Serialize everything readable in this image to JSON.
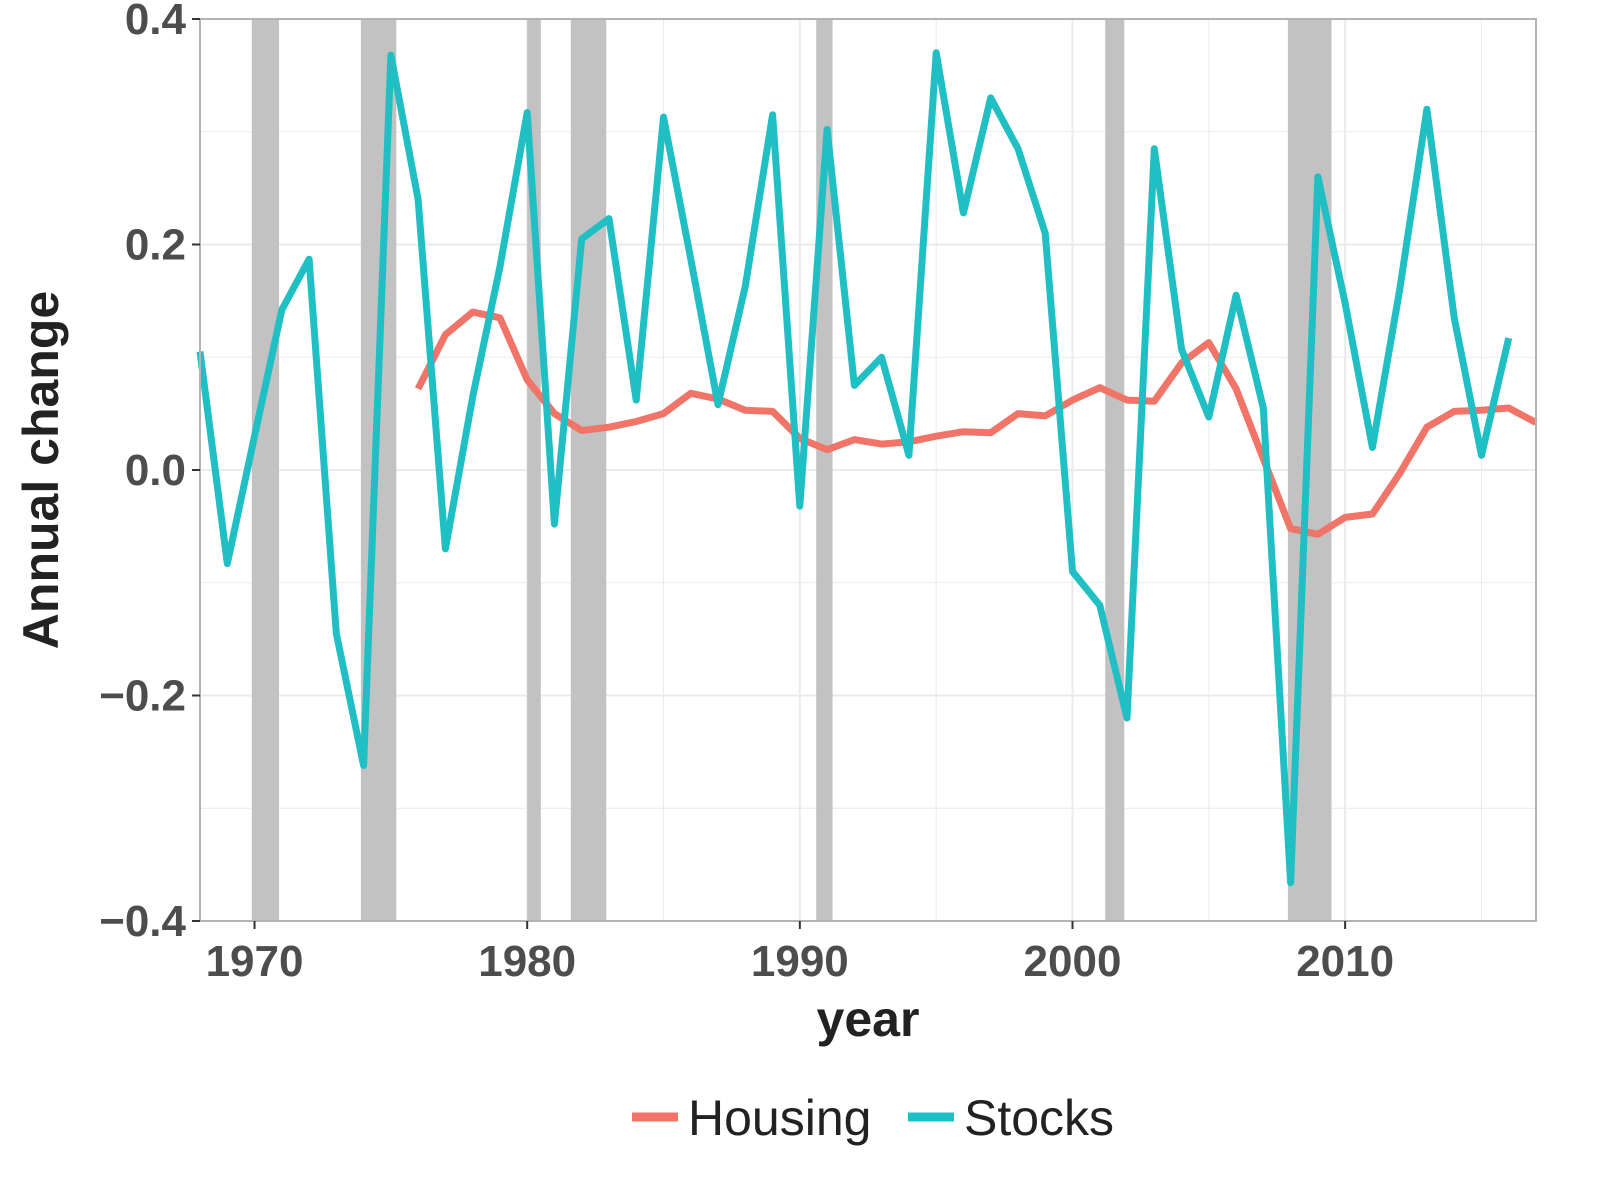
{
  "chart_data": {
    "type": "line",
    "title": "",
    "xlabel": "year",
    "ylabel": "Annual change",
    "xlim": [
      1968,
      2017
    ],
    "ylim": [
      -0.4,
      0.4
    ],
    "x_ticks": [
      1970,
      1980,
      1990,
      2000,
      2010
    ],
    "y_ticks": [
      0.4,
      0.2,
      0.0,
      -0.2,
      -0.4
    ],
    "y_tick_labels": [
      "0.4",
      "0.2",
      "0.0",
      "−0.2",
      "−0.4"
    ],
    "grid": true,
    "legend_position": "bottom",
    "recession_shading_color": "#c2c2c2",
    "recessions": [
      [
        1969.9,
        1970.9
      ],
      [
        1973.9,
        1975.2
      ],
      [
        1980.0,
        1980.5
      ],
      [
        1981.6,
        1982.9
      ],
      [
        1990.6,
        1991.2
      ],
      [
        2001.2,
        2001.9
      ],
      [
        2007.9,
        2009.5
      ]
    ],
    "series": [
      {
        "name": "Housing",
        "color": "#f07468",
        "x": [
          1976,
          1977,
          1978,
          1979,
          1980,
          1981,
          1982,
          1983,
          1984,
          1985,
          1986,
          1987,
          1988,
          1989,
          1990,
          1991,
          1992,
          1993,
          1994,
          1995,
          1996,
          1997,
          1998,
          1999,
          2000,
          2001,
          2002,
          2003,
          2004,
          2005,
          2006,
          2007,
          2008,
          2009,
          2010,
          2011,
          2012,
          2013,
          2014,
          2015,
          2016,
          2017
        ],
        "values": [
          0.072,
          0.12,
          0.14,
          0.135,
          0.08,
          0.05,
          0.035,
          0.038,
          0.043,
          0.05,
          0.068,
          0.063,
          0.053,
          0.052,
          0.028,
          0.018,
          0.027,
          0.023,
          0.025,
          0.03,
          0.034,
          0.033,
          0.05,
          0.048,
          0.062,
          0.073,
          0.062,
          0.061,
          0.095,
          0.113,
          0.072,
          0.01,
          -0.052,
          -0.057,
          -0.042,
          -0.039,
          -0.003,
          0.038,
          0.052,
          0.053,
          0.055,
          0.042
        ]
      },
      {
        "name": "Stocks",
        "color": "#20bfc4",
        "x": [
          1968,
          1969,
          1970,
          1971,
          1972,
          1973,
          1974,
          1975,
          1976,
          1977,
          1978,
          1979,
          1980,
          1981,
          1982,
          1983,
          1984,
          1985,
          1986,
          1987,
          1988,
          1989,
          1990,
          1991,
          1992,
          1993,
          1994,
          1995,
          1996,
          1997,
          1998,
          1999,
          2000,
          2001,
          2002,
          2003,
          2004,
          2005,
          2006,
          2007,
          2008,
          2009,
          2010,
          2011,
          2012,
          2013,
          2014,
          2015,
          2016
        ],
        "values": [
          0.105,
          -0.083,
          0.03,
          0.142,
          0.187,
          -0.145,
          -0.262,
          0.368,
          0.24,
          -0.07,
          0.065,
          0.18,
          0.317,
          -0.048,
          0.205,
          0.223,
          0.062,
          0.313,
          0.187,
          0.058,
          0.163,
          0.315,
          -0.032,
          0.302,
          0.075,
          0.1,
          0.013,
          0.37,
          0.228,
          0.33,
          0.285,
          0.21,
          -0.09,
          -0.12,
          -0.22,
          0.285,
          0.107,
          0.047,
          0.155,
          0.055,
          -0.366,
          0.26,
          0.148,
          0.02,
          0.16,
          0.32,
          0.135,
          0.013,
          0.117
        ]
      }
    ]
  }
}
